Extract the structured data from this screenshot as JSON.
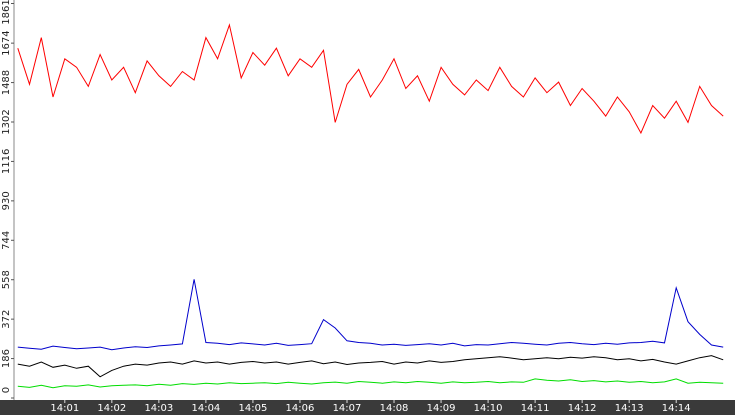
{
  "chart_data": {
    "type": "line",
    "x": [
      0,
      0.25,
      0.5,
      0.75,
      1,
      1.25,
      1.5,
      1.75,
      2,
      2.25,
      2.5,
      2.75,
      3,
      3.25,
      3.5,
      3.75,
      4,
      4.25,
      4.5,
      4.75,
      5,
      5.25,
      5.5,
      5.75,
      6,
      6.25,
      6.5,
      6.75,
      7,
      7.25,
      7.5,
      7.75,
      8,
      8.25,
      8.5,
      8.75,
      9,
      9.25,
      9.5,
      9.75,
      10,
      10.25,
      10.5,
      10.75,
      11,
      11.25,
      11.5,
      11.75,
      12,
      12.25,
      12.5,
      12.75,
      13,
      13.25,
      13.5,
      13.75,
      14,
      14.25,
      14.5,
      14.75,
      15
    ],
    "xlim": [
      -0.08,
      15.25
    ],
    "xticks": [
      {
        "value": 1,
        "label": "14:01"
      },
      {
        "value": 2,
        "label": "14:02"
      },
      {
        "value": 3,
        "label": "14:03"
      },
      {
        "value": 4,
        "label": "14:04"
      },
      {
        "value": 5,
        "label": "14:05"
      },
      {
        "value": 6,
        "label": "14:06"
      },
      {
        "value": 7,
        "label": "14:07"
      },
      {
        "value": 8,
        "label": "14:08"
      },
      {
        "value": 9,
        "label": "14:09"
      },
      {
        "value": 10,
        "label": "14:10"
      },
      {
        "value": 11,
        "label": "14:11"
      },
      {
        "value": 12,
        "label": "14:12"
      },
      {
        "value": 13,
        "label": "14:13"
      },
      {
        "value": 14,
        "label": "14:14"
      }
    ],
    "ylim": [
      0,
      1861
    ],
    "yticks": [
      0,
      186,
      372,
      558,
      744,
      930,
      1116,
      1302,
      1488,
      1674,
      1861
    ],
    "series": [
      {
        "color": "#ff0000",
        "values": [
          1650,
          1480,
          1700,
          1420,
          1600,
          1560,
          1470,
          1620,
          1500,
          1560,
          1440,
          1590,
          1520,
          1470,
          1540,
          1500,
          1700,
          1600,
          1760,
          1510,
          1630,
          1570,
          1650,
          1520,
          1600,
          1560,
          1640,
          1300,
          1480,
          1550,
          1420,
          1500,
          1600,
          1460,
          1520,
          1400,
          1560,
          1480,
          1430,
          1500,
          1450,
          1560,
          1470,
          1420,
          1510,
          1440,
          1490,
          1380,
          1460,
          1400,
          1330,
          1420,
          1350,
          1250,
          1380,
          1320,
          1400,
          1300,
          1470,
          1380,
          1330
        ]
      },
      {
        "color": "#0000cc",
        "values": [
          240,
          235,
          230,
          245,
          238,
          232,
          236,
          240,
          228,
          236,
          242,
          238,
          246,
          250,
          255,
          560,
          262,
          258,
          252,
          260,
          255,
          250,
          258,
          248,
          252,
          256,
          370,
          330,
          270,
          262,
          258,
          250,
          254,
          248,
          252,
          256,
          250,
          258,
          246,
          252,
          250,
          256,
          262,
          258,
          254,
          250,
          258,
          262,
          256,
          252,
          258,
          254,
          260,
          262,
          268,
          260,
          520,
          360,
          300,
          250,
          240
        ]
      },
      {
        "color": "#000000",
        "values": [
          160,
          150,
          170,
          145,
          155,
          140,
          150,
          100,
          130,
          150,
          160,
          155,
          165,
          170,
          160,
          175,
          165,
          170,
          160,
          168,
          172,
          165,
          170,
          160,
          168,
          175,
          162,
          170,
          158,
          165,
          168,
          172,
          160,
          170,
          165,
          175,
          168,
          172,
          180,
          185,
          190,
          195,
          188,
          180,
          185,
          190,
          185,
          192,
          188,
          195,
          190,
          180,
          185,
          175,
          182,
          170,
          160,
          175,
          190,
          200,
          180
        ]
      },
      {
        "color": "#00dd00",
        "values": [
          55,
          50,
          60,
          48,
          58,
          55,
          62,
          52,
          58,
          60,
          62,
          58,
          65,
          60,
          68,
          64,
          70,
          66,
          72,
          68,
          70,
          72,
          68,
          74,
          70,
          66,
          72,
          75,
          70,
          78,
          74,
          70,
          76,
          72,
          78,
          74,
          70,
          76,
          72,
          74,
          78,
          72,
          76,
          74,
          90,
          84,
          80,
          86,
          78,
          82,
          76,
          80,
          74,
          78,
          72,
          76,
          90,
          70,
          74,
          72,
          70
        ]
      }
    ]
  }
}
